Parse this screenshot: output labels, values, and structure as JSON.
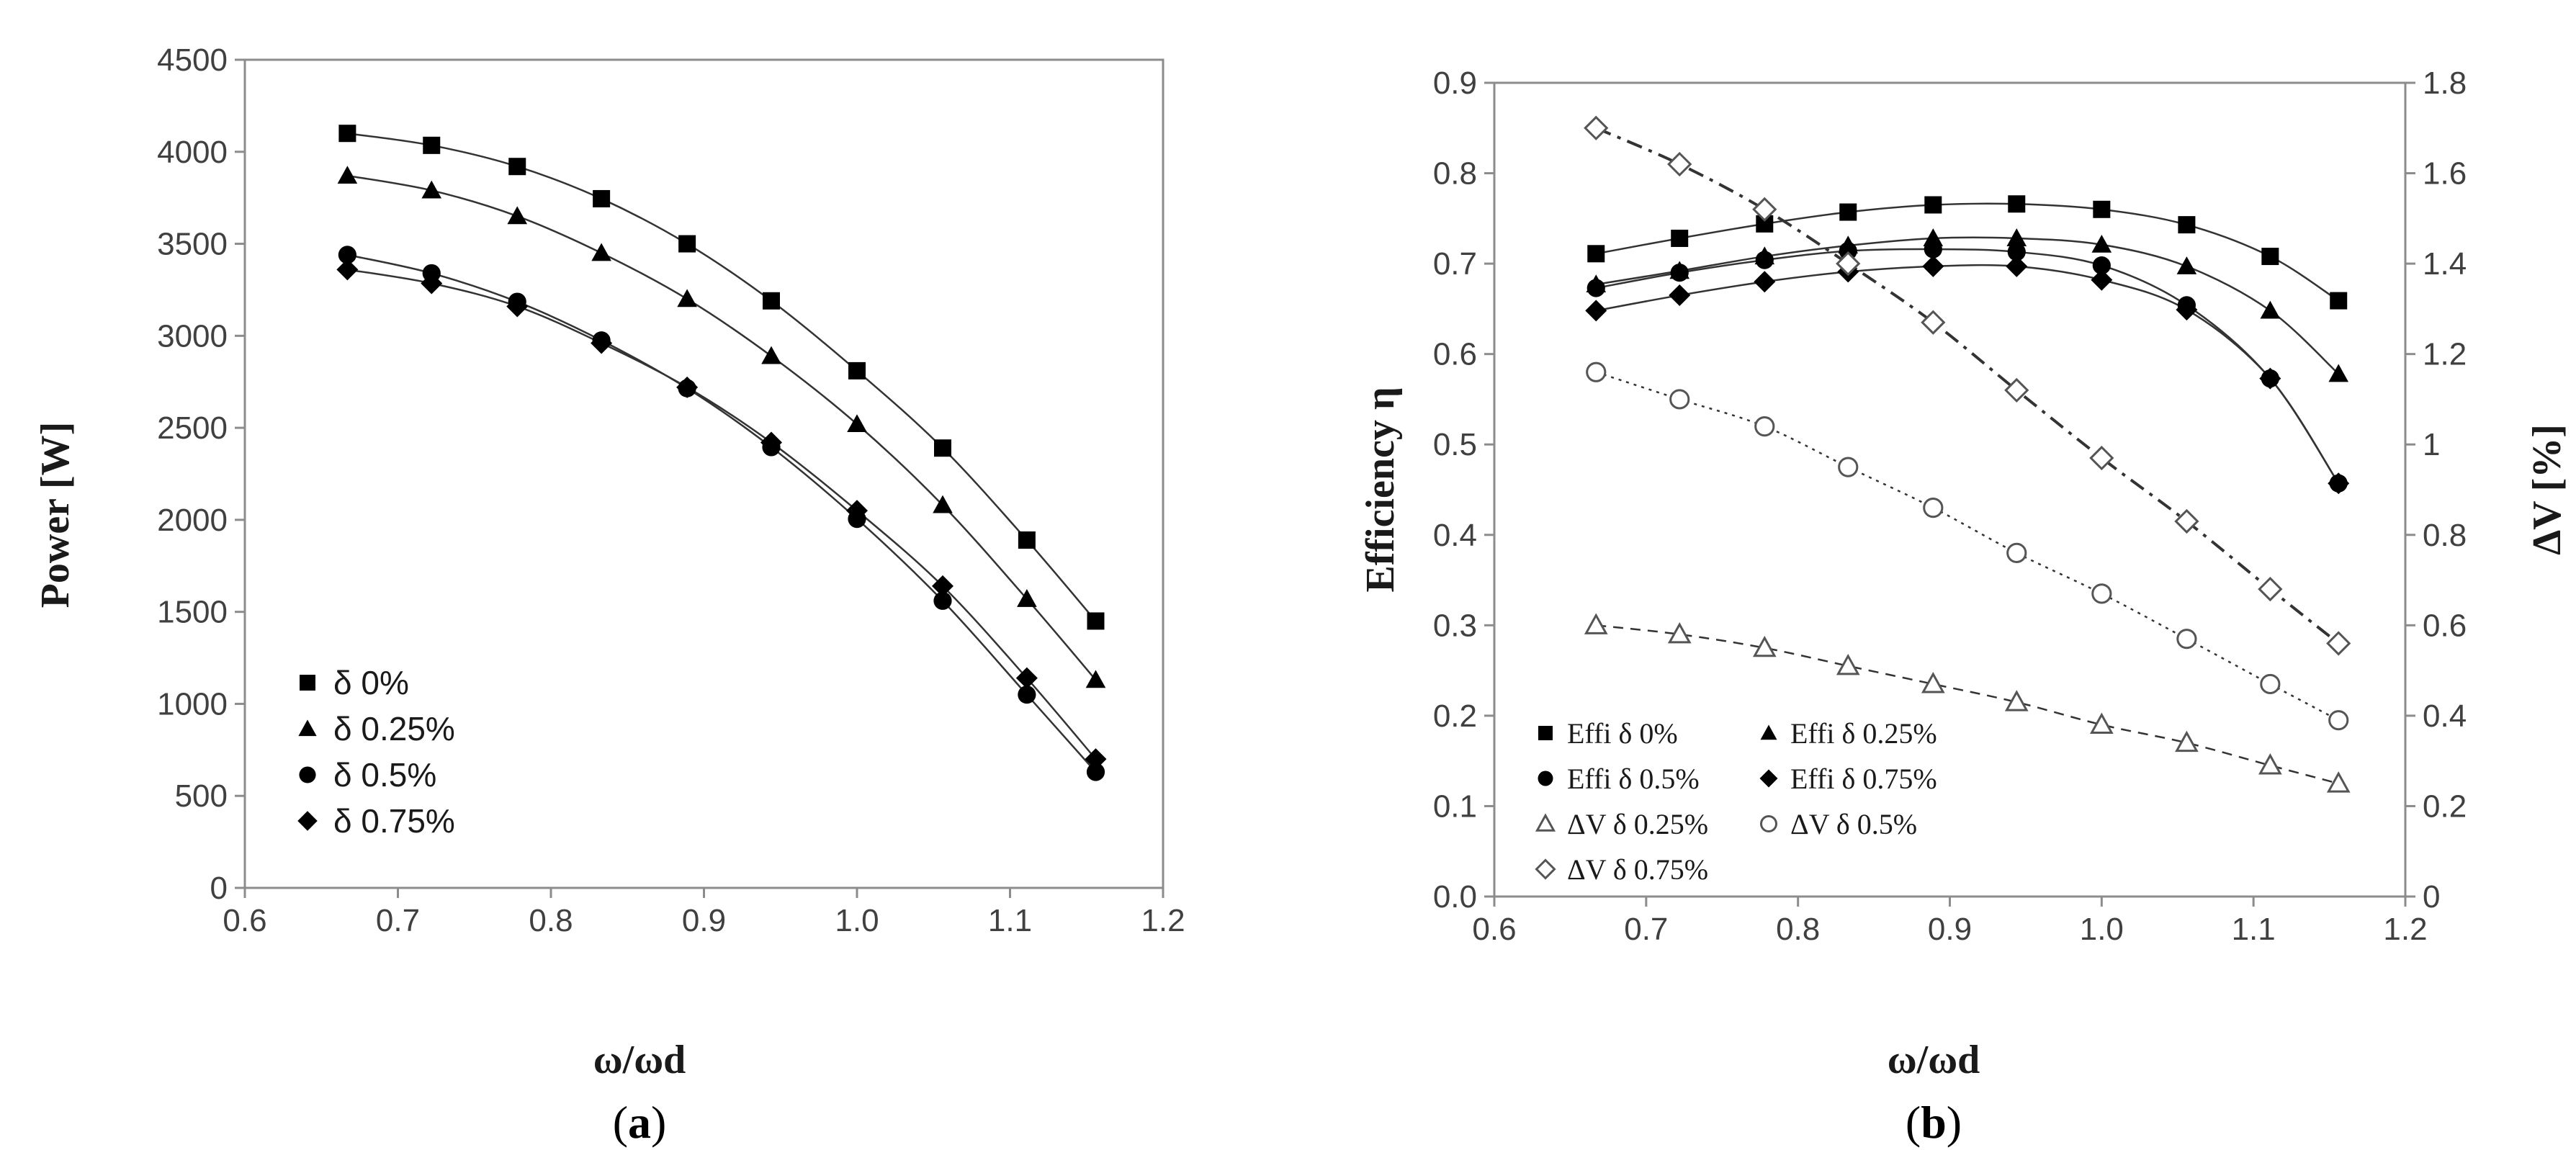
{
  "chart_data": [
    {
      "type": "line",
      "panel_label": "a",
      "xlabel": "ω/ωd",
      "ylabel": "Power [W]",
      "xlim": [
        0.6,
        1.2
      ],
      "ylim": [
        0,
        4500
      ],
      "xticks": [
        "0.6",
        "0.7",
        "0.8",
        "0.9",
        "1.0",
        "1.1",
        "1.2"
      ],
      "yticks": [
        "0",
        "500",
        "1000",
        "1500",
        "2000",
        "2500",
        "3000",
        "3500",
        "4000",
        "4500"
      ],
      "x": [
        0.667,
        0.722,
        0.778,
        0.833,
        0.889,
        0.944,
        1.0,
        1.056,
        1.111,
        1.156
      ],
      "legend_position": "bottom-left",
      "series": [
        {
          "name": "δ 0%",
          "marker": "square",
          "values": [
            4100,
            4035,
            3920,
            3745,
            3500,
            3190,
            2810,
            2390,
            1890,
            1450
          ]
        },
        {
          "name": "δ 0.25%",
          "marker": "triangle",
          "values": [
            3870,
            3790,
            3650,
            3450,
            3200,
            2890,
            2520,
            2080,
            1570,
            1130
          ]
        },
        {
          "name": "δ 0.5%",
          "marker": "circle",
          "values": [
            3440,
            3340,
            3185,
            2975,
            2715,
            2395,
            2005,
            1560,
            1050,
            630
          ]
        },
        {
          "name": "δ 0.75%",
          "marker": "diamond",
          "values": [
            3360,
            3285,
            3160,
            2960,
            2720,
            2420,
            2050,
            1640,
            1140,
            700
          ]
        }
      ]
    },
    {
      "type": "line",
      "panel_label": "b",
      "xlabel": "ω/ωd",
      "ylabel": "Efficiency η",
      "y2label": "ΔV [%]",
      "xlim": [
        0.6,
        1.2
      ],
      "ylim": [
        0.0,
        0.9
      ],
      "y2lim": [
        0,
        1.8
      ],
      "xticks": [
        "0.6",
        "0.7",
        "0.8",
        "0.9",
        "1.0",
        "1.1",
        "1.2"
      ],
      "yticks": [
        "0.0",
        "0.1",
        "0.2",
        "0.3",
        "0.4",
        "0.5",
        "0.6",
        "0.7",
        "0.8",
        "0.9"
      ],
      "y2ticks": [
        "0",
        "0.2",
        "0.4",
        "0.6",
        "0.8",
        "1",
        "1.2",
        "1.4",
        "1.6",
        "1.8"
      ],
      "x": [
        0.667,
        0.722,
        0.778,
        0.833,
        0.889,
        0.944,
        1.0,
        1.056,
        1.111,
        1.156
      ],
      "legend_position": "bottom-left",
      "series": [
        {
          "name": "Effi δ 0%",
          "axis": "left",
          "marker": "square",
          "filled": true,
          "line": "solid",
          "values": [
            0.711,
            0.728,
            0.744,
            0.757,
            0.765,
            0.766,
            0.76,
            0.743,
            0.708,
            0.659
          ]
        },
        {
          "name": "Effi δ 0.25%",
          "axis": "left",
          "marker": "triangle",
          "filled": true,
          "line": "solid",
          "values": [
            0.677,
            0.692,
            0.708,
            0.72,
            0.728,
            0.728,
            0.721,
            0.697,
            0.648,
            0.578
          ]
        },
        {
          "name": "Effi δ 0.5%",
          "axis": "left",
          "marker": "circle",
          "filled": true,
          "line": "solid",
          "values": [
            0.673,
            0.69,
            0.704,
            0.714,
            0.716,
            0.713,
            0.698,
            0.654,
            0.573,
            0.457
          ]
        },
        {
          "name": "Effi δ 0.75%",
          "axis": "left",
          "marker": "diamond",
          "filled": true,
          "line": "solid",
          "values": [
            0.648,
            0.665,
            0.68,
            0.691,
            0.697,
            0.697,
            0.682,
            0.649,
            0.573,
            0.457
          ]
        },
        {
          "name": "ΔV δ 0.25%",
          "axis": "right",
          "marker": "triangle",
          "filled": false,
          "line": "dashed",
          "values": [
            0.6,
            0.58,
            0.55,
            0.51,
            0.47,
            0.43,
            0.38,
            0.34,
            0.29,
            0.25
          ]
        },
        {
          "name": "ΔV δ 0.5%",
          "axis": "right",
          "marker": "circle",
          "filled": false,
          "line": "dotted",
          "values": [
            1.16,
            1.1,
            1.04,
            0.95,
            0.86,
            0.76,
            0.67,
            0.57,
            0.47,
            0.39
          ]
        },
        {
          "name": "ΔV δ 0.75%",
          "axis": "right",
          "marker": "diamond",
          "filled": false,
          "line": "dashdot",
          "values": [
            1.7,
            1.62,
            1.52,
            1.4,
            1.27,
            1.12,
            0.97,
            0.83,
            0.68,
            0.56
          ]
        }
      ]
    }
  ]
}
